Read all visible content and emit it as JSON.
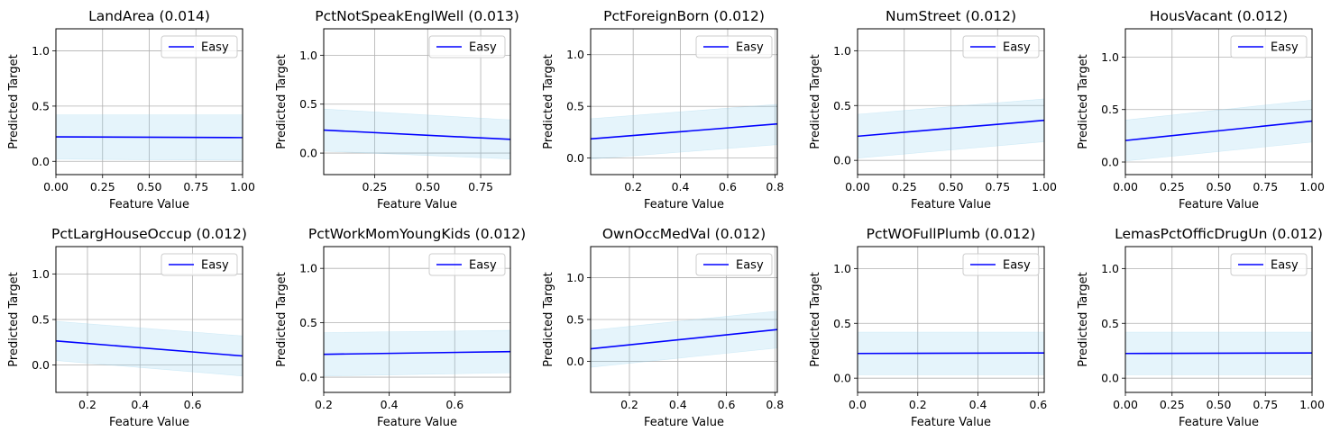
{
  "chart_data": [
    {
      "type": "line",
      "title": "LandArea (0.014)",
      "xlabel": "Feature Value",
      "ylabel": "Predicted Target",
      "xlim": [
        0,
        1
      ],
      "ylim": [
        -0.12,
        1.2
      ],
      "xticks": [
        0,
        0.25,
        0.5,
        0.75,
        1
      ],
      "xtick_labels": [
        "0.00",
        "0.25",
        "0.50",
        "0.75",
        "1.00"
      ],
      "yticks": [
        0,
        0.5,
        1
      ],
      "ytick_labels": [
        "0.0",
        "0.5",
        "1.0"
      ],
      "series": [
        {
          "name": "Easy",
          "x": [
            0,
            1
          ],
          "y": [
            0.222,
            0.215
          ]
        }
      ],
      "band": {
        "x": [
          0,
          1
        ],
        "lower": [
          0.02,
          0.01
        ],
        "upper": [
          0.42,
          0.42
        ]
      },
      "legend": "upper right",
      "grid": true
    },
    {
      "type": "line",
      "title": "PctNotSpeakEnglWell (0.013)",
      "xlabel": "Feature Value",
      "ylabel": "Predicted Target",
      "xlim": [
        0.01,
        0.89
      ],
      "ylim": [
        -0.22,
        1.27
      ],
      "xticks": [
        0.25,
        0.5,
        0.75
      ],
      "xtick_labels": [
        "0.25",
        "0.50",
        "0.75"
      ],
      "yticks": [
        0,
        0.5,
        1
      ],
      "ytick_labels": [
        "0.0",
        "0.5",
        "1.0"
      ],
      "series": [
        {
          "name": "Easy",
          "x": [
            0.01,
            0.89
          ],
          "y": [
            0.235,
            0.14
          ]
        }
      ],
      "band": {
        "x": [
          0.01,
          0.89
        ],
        "lower": [
          0.02,
          -0.06
        ],
        "upper": [
          0.45,
          0.34
        ]
      },
      "legend": "upper right",
      "grid": true
    },
    {
      "type": "line",
      "title": "PctForeignBorn (0.012)",
      "xlabel": "Feature Value",
      "ylabel": "Predicted Target",
      "xlim": [
        0.02,
        0.81
      ],
      "ylim": [
        -0.16,
        1.25
      ],
      "xticks": [
        0.2,
        0.4,
        0.6,
        0.8
      ],
      "xtick_labels": [
        "0.2",
        "0.4",
        "0.6",
        "0.8"
      ],
      "yticks": [
        0,
        0.5,
        1
      ],
      "ytick_labels": [
        "0.0",
        "0.5",
        "1.0"
      ],
      "series": [
        {
          "name": "Easy",
          "x": [
            0.02,
            0.81
          ],
          "y": [
            0.185,
            0.33
          ]
        }
      ],
      "band": {
        "x": [
          0.02,
          0.81
        ],
        "lower": [
          -0.01,
          0.13
        ],
        "upper": [
          0.38,
          0.52
        ]
      },
      "legend": "upper right",
      "grid": true
    },
    {
      "type": "line",
      "title": "NumStreet (0.012)",
      "xlabel": "Feature Value",
      "ylabel": "Predicted Target",
      "xlim": [
        0,
        1
      ],
      "ylim": [
        -0.13,
        1.2
      ],
      "xticks": [
        0,
        0.25,
        0.5,
        0.75,
        1
      ],
      "xtick_labels": [
        "0.00",
        "0.25",
        "0.50",
        "0.75",
        "1.00"
      ],
      "yticks": [
        0,
        0.5,
        1
      ],
      "ytick_labels": [
        "0.0",
        "0.5",
        "1.0"
      ],
      "series": [
        {
          "name": "Easy",
          "x": [
            0,
            1
          ],
          "y": [
            0.22,
            0.365
          ]
        }
      ],
      "band": {
        "x": [
          0,
          1
        ],
        "lower": [
          0.02,
          0.17
        ],
        "upper": [
          0.42,
          0.56
        ]
      },
      "legend": "upper right",
      "grid": true
    },
    {
      "type": "line",
      "title": "HousVacant (0.012)",
      "xlabel": "Feature Value",
      "ylabel": "Predicted Target",
      "xlim": [
        0,
        1
      ],
      "ylim": [
        -0.12,
        1.27
      ],
      "xticks": [
        0,
        0.25,
        0.5,
        0.75,
        1
      ],
      "xtick_labels": [
        "0.00",
        "0.25",
        "0.50",
        "0.75",
        "1.00"
      ],
      "yticks": [
        0,
        0.5,
        1
      ],
      "ytick_labels": [
        "0.0",
        "0.5",
        "1.0"
      ],
      "series": [
        {
          "name": "Easy",
          "x": [
            0,
            1
          ],
          "y": [
            0.205,
            0.39
          ]
        }
      ],
      "band": {
        "x": [
          0,
          1
        ],
        "lower": [
          0.01,
          0.19
        ],
        "upper": [
          0.4,
          0.59
        ]
      },
      "legend": "upper right",
      "grid": true
    },
    {
      "type": "line",
      "title": "PctLargHouseOccup (0.012)",
      "xlabel": "Feature Value",
      "ylabel": "Predicted Target",
      "xlim": [
        0.08,
        0.79
      ],
      "ylim": [
        -0.3,
        1.3
      ],
      "xticks": [
        0.2,
        0.4,
        0.6
      ],
      "xtick_labels": [
        "0.2",
        "0.4",
        "0.6"
      ],
      "yticks": [
        0,
        0.5,
        1
      ],
      "ytick_labels": [
        "0.0",
        "0.5",
        "1.0"
      ],
      "series": [
        {
          "name": "Easy",
          "x": [
            0.08,
            0.79
          ],
          "y": [
            0.265,
            0.1
          ]
        }
      ],
      "band": {
        "x": [
          0.08,
          0.79
        ],
        "lower": [
          0.05,
          -0.12
        ],
        "upper": [
          0.48,
          0.32
        ]
      },
      "legend": "upper right",
      "grid": true
    },
    {
      "type": "line",
      "title": "PctWorkMomYoungKids (0.012)",
      "xlabel": "Feature Value",
      "ylabel": "Predicted Target",
      "xlim": [
        0.2,
        0.77
      ],
      "ylim": [
        -0.14,
        1.2
      ],
      "xticks": [
        0.2,
        0.4,
        0.6
      ],
      "xtick_labels": [
        "0.2",
        "0.4",
        "0.6"
      ],
      "yticks": [
        0,
        0.5,
        1
      ],
      "ytick_labels": [
        "0.0",
        "0.5",
        "1.0"
      ],
      "series": [
        {
          "name": "Easy",
          "x": [
            0.2,
            0.77
          ],
          "y": [
            0.21,
            0.235
          ]
        }
      ],
      "band": {
        "x": [
          0.2,
          0.77
        ],
        "lower": [
          0.01,
          0.04
        ],
        "upper": [
          0.41,
          0.43
        ]
      },
      "legend": "upper right",
      "grid": true
    },
    {
      "type": "line",
      "title": "OwnOccMedVal (0.012)",
      "xlabel": "Feature Value",
      "ylabel": "Predicted Target",
      "xlim": [
        0.04,
        0.81
      ],
      "ylim": [
        -0.37,
        1.37
      ],
      "xticks": [
        0.2,
        0.4,
        0.6,
        0.8
      ],
      "xtick_labels": [
        "0.2",
        "0.4",
        "0.6",
        "0.8"
      ],
      "yticks": [
        0,
        0.5,
        1
      ],
      "ytick_labels": [
        "0.0",
        "0.5",
        "1.0"
      ],
      "series": [
        {
          "name": "Easy",
          "x": [
            0.04,
            0.81
          ],
          "y": [
            0.15,
            0.38
          ]
        }
      ],
      "band": {
        "x": [
          0.04,
          0.81
        ],
        "lower": [
          -0.07,
          0.16
        ],
        "upper": [
          0.37,
          0.6
        ]
      },
      "legend": "upper right",
      "grid": true
    },
    {
      "type": "line",
      "title": "PctWOFullPlumb (0.012)",
      "xlabel": "Feature Value",
      "ylabel": "Predicted Target",
      "xlim": [
        0,
        0.62
      ],
      "ylim": [
        -0.13,
        1.2
      ],
      "xticks": [
        0,
        0.2,
        0.4,
        0.6
      ],
      "xtick_labels": [
        "0.0",
        "0.2",
        "0.4",
        "0.6"
      ],
      "yticks": [
        0,
        0.5,
        1
      ],
      "ytick_labels": [
        "0.0",
        "0.5",
        "1.0"
      ],
      "series": [
        {
          "name": "Easy",
          "x": [
            0,
            0.62
          ],
          "y": [
            0.225,
            0.23
          ]
        }
      ],
      "band": {
        "x": [
          0,
          0.62
        ],
        "lower": [
          0.03,
          0.03
        ],
        "upper": [
          0.42,
          0.42
        ]
      },
      "legend": "upper right",
      "grid": true
    },
    {
      "type": "line",
      "title": "LemasPctOfficDrugUn (0.012)",
      "xlabel": "Feature Value",
      "ylabel": "Predicted Target",
      "xlim": [
        0,
        1
      ],
      "ylim": [
        -0.13,
        1.2
      ],
      "xticks": [
        0,
        0.25,
        0.5,
        0.75,
        1
      ],
      "xtick_labels": [
        "0.00",
        "0.25",
        "0.50",
        "0.75",
        "1.00"
      ],
      "yticks": [
        0,
        0.5,
        1
      ],
      "ytick_labels": [
        "0.0",
        "0.5",
        "1.0"
      ],
      "series": [
        {
          "name": "Easy",
          "x": [
            0,
            1
          ],
          "y": [
            0.225,
            0.23
          ]
        }
      ],
      "band": {
        "x": [
          0,
          1
        ],
        "lower": [
          0.03,
          0.03
        ],
        "upper": [
          0.42,
          0.42
        ]
      },
      "legend": "upper right",
      "grid": true
    }
  ],
  "colors": {
    "line": "#0000ff",
    "band": "#87ceeb",
    "grid": "#b0b0b0",
    "axes": "#000000"
  }
}
